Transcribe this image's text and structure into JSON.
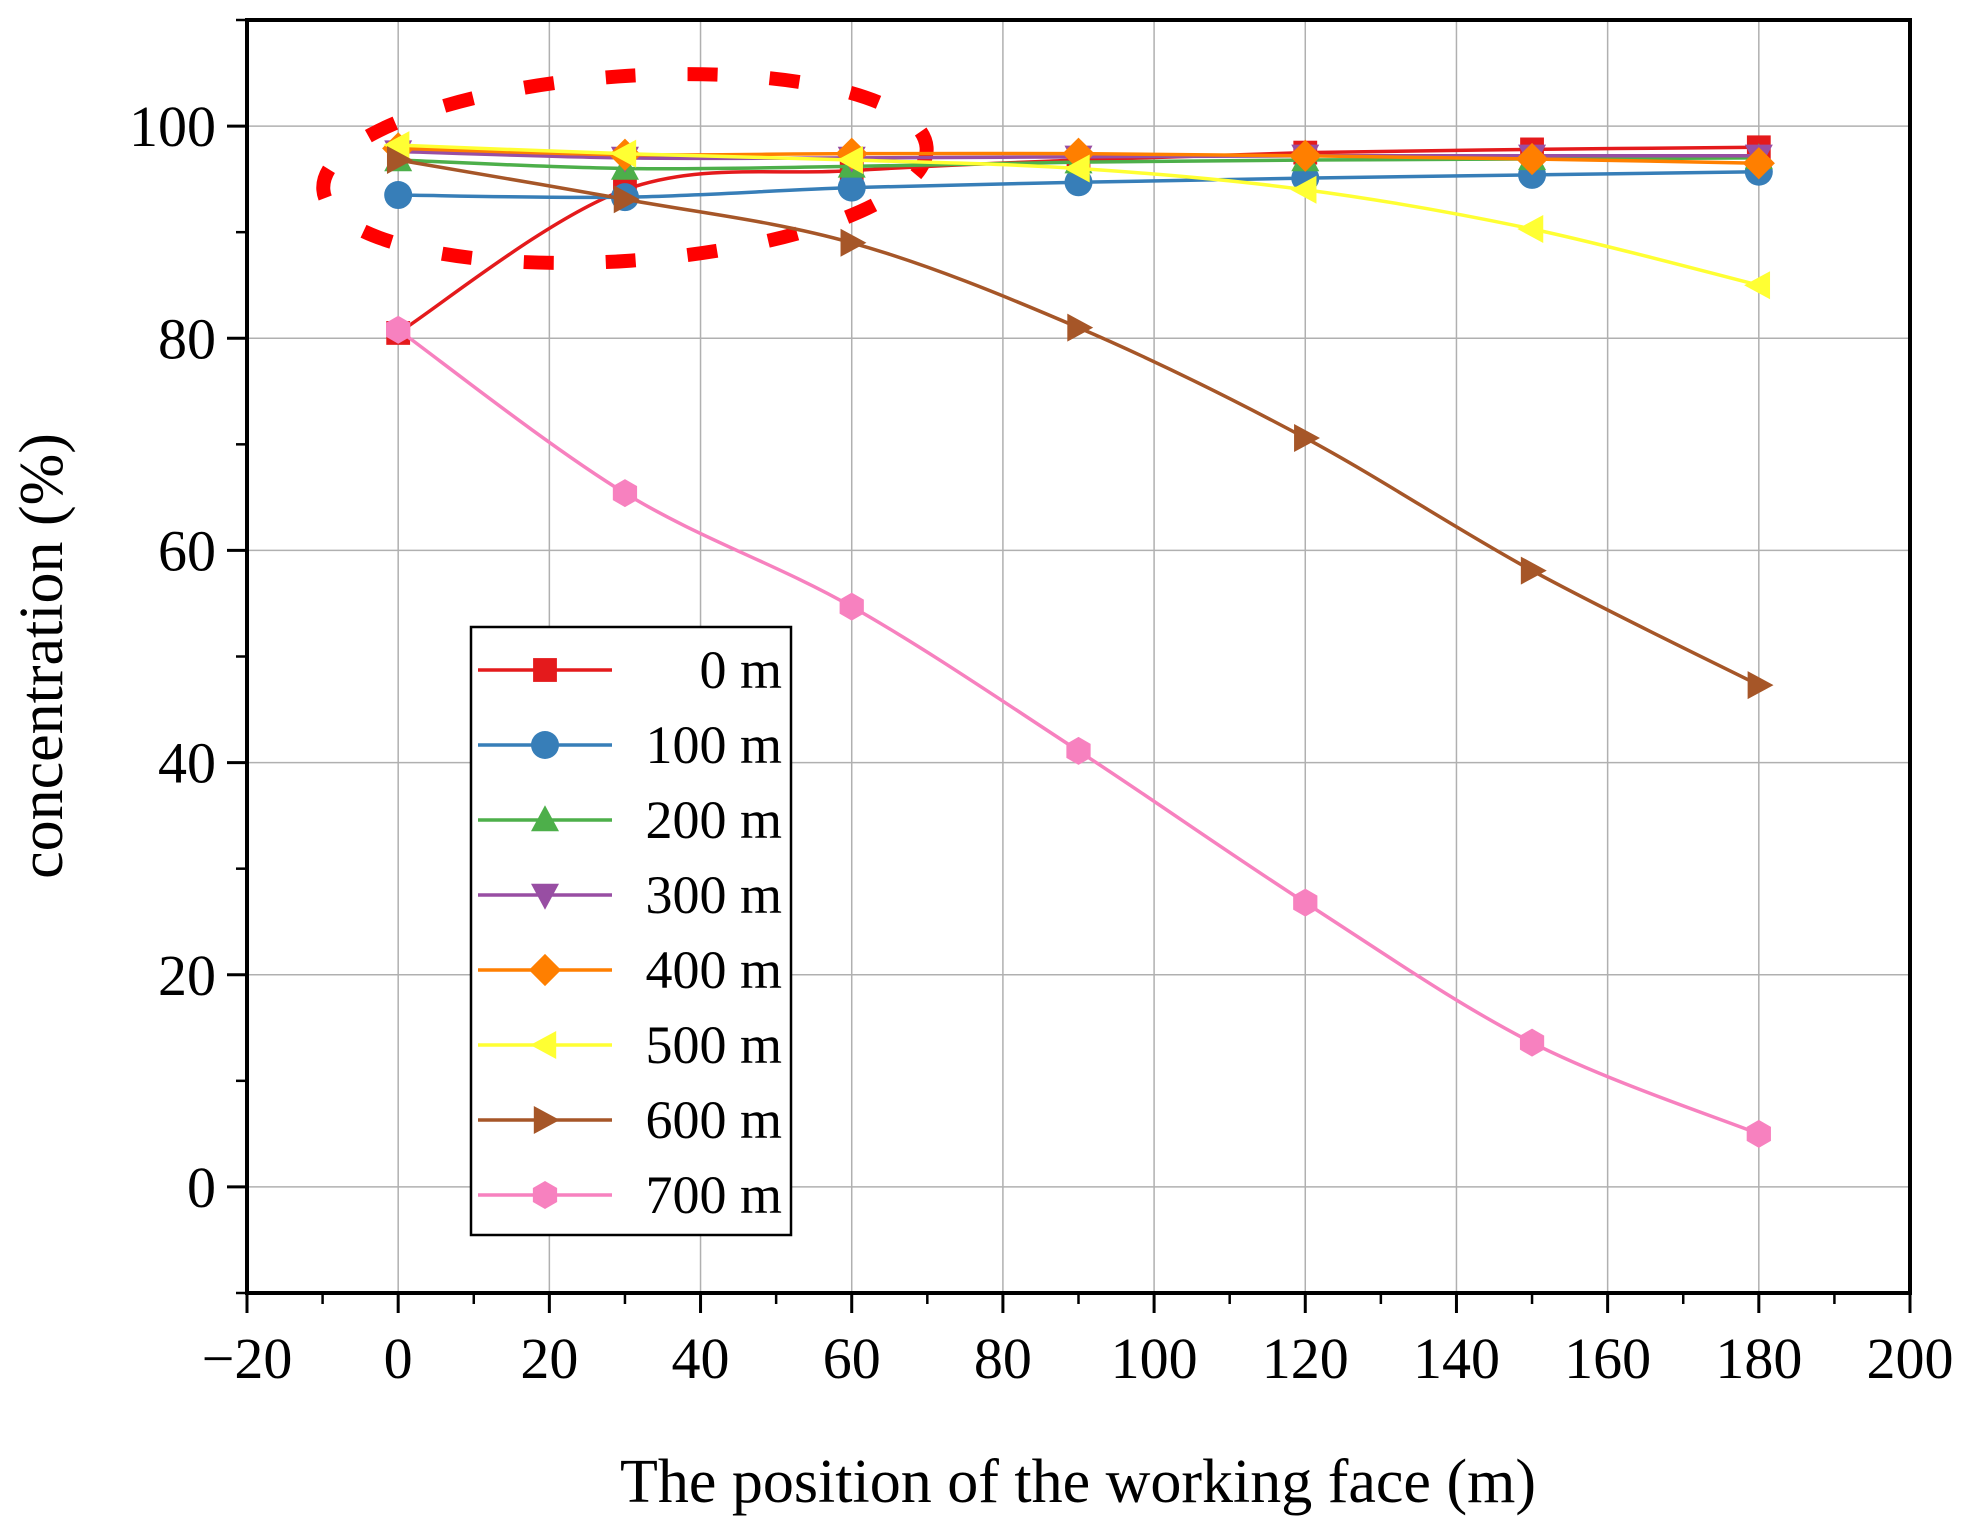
{
  "chart_data": {
    "type": "line",
    "title": "",
    "xlabel": "The position of the working face (m)",
    "ylabel": "concentration (%)",
    "xlim": [
      -20,
      200
    ],
    "ylim": [
      -10,
      110
    ],
    "x_ticks": [
      -20,
      0,
      20,
      40,
      60,
      80,
      100,
      120,
      140,
      160,
      180,
      200
    ],
    "x_tick_labels": [
      "−20",
      "0",
      "20",
      "40",
      "60",
      "80",
      "100",
      "120",
      "140",
      "160",
      "180",
      "200"
    ],
    "y_ticks": [
      0,
      20,
      40,
      60,
      80,
      100
    ],
    "y_tick_labels": [
      "0",
      "20",
      "40",
      "60",
      "80",
      "100"
    ],
    "grid": true,
    "legend_position": "center-left",
    "x": [
      0,
      30,
      60,
      90,
      120,
      150,
      180
    ],
    "series": [
      {
        "name": "0 m",
        "color": "#e41a1c",
        "marker": "square",
        "values": [
          80.5,
          94.0,
          95.8,
          96.8,
          97.5,
          97.8,
          98.0
        ]
      },
      {
        "name": "100 m",
        "color": "#377eb8",
        "marker": "circle",
        "values": [
          93.5,
          93.3,
          94.2,
          94.7,
          95.1,
          95.4,
          95.7
        ]
      },
      {
        "name": "200 m",
        "color": "#4daf4a",
        "marker": "triangle-up",
        "values": [
          96.8,
          96.0,
          96.2,
          96.6,
          96.8,
          96.9,
          97.0
        ]
      },
      {
        "name": "300 m",
        "color": "#984ea3",
        "marker": "triangle-down",
        "values": [
          97.6,
          97.0,
          97.0,
          97.1,
          97.2,
          97.2,
          97.2
        ]
      },
      {
        "name": "400 m",
        "color": "#ff7f00",
        "marker": "diamond",
        "values": [
          97.9,
          97.3,
          97.4,
          97.4,
          97.2,
          96.9,
          96.5
        ]
      },
      {
        "name": "500 m",
        "color": "#ffff33",
        "marker": "triangle-left",
        "values": [
          98.2,
          97.4,
          96.8,
          96.0,
          94.0,
          90.3,
          85.0
        ]
      },
      {
        "name": "600 m",
        "color": "#a65628",
        "marker": "triangle-right",
        "values": [
          96.8,
          93.1,
          89.0,
          81.0,
          70.6,
          58.1,
          47.3
        ]
      },
      {
        "name": "700 m",
        "color": "#f781bf",
        "marker": "hexagon",
        "values": [
          80.8,
          65.4,
          54.7,
          41.1,
          26.8,
          13.6,
          5.0
        ]
      }
    ],
    "annotations": [
      {
        "type": "dashed-ellipse",
        "color": "#ff0000",
        "center": [
          30,
          96
        ],
        "radius_x": 40,
        "radius_y": 8.7
      }
    ]
  }
}
